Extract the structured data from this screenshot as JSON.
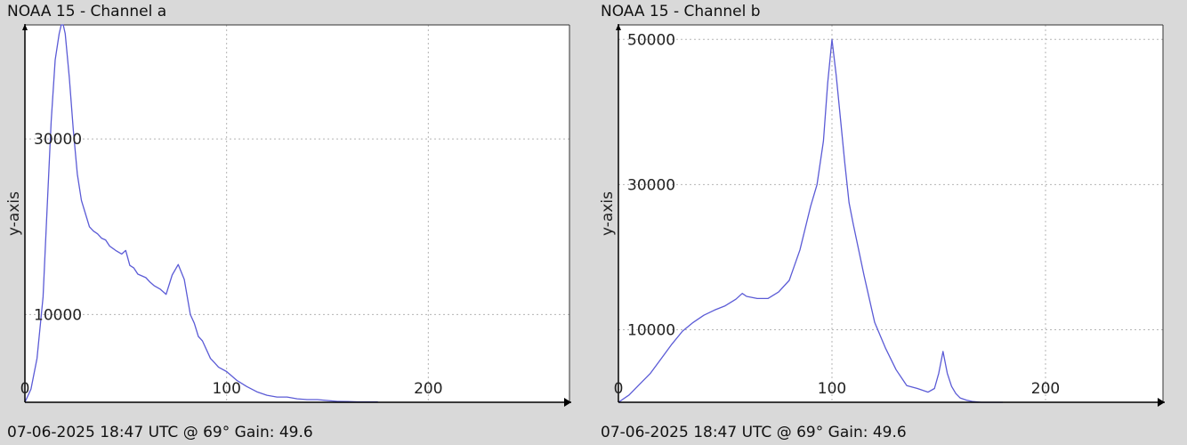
{
  "chart_data": [
    {
      "type": "line",
      "title": "NOAA 15 - Channel a",
      "footer": "07-06-2025 18:47 UTC @ 69° Gain: 49.6",
      "xlabel": "",
      "ylabel": "y-axis",
      "xlim": [
        0,
        270
      ],
      "ylim": [
        0,
        43000
      ],
      "xticks": [
        0,
        100,
        200
      ],
      "yticks": [
        10000,
        30000
      ],
      "grid": true,
      "series": [
        {
          "color": "#5b5bd6",
          "x": [
            0,
            3,
            6,
            9,
            11,
            13,
            15,
            17,
            18,
            19,
            20,
            22,
            24,
            26,
            28,
            30,
            32,
            34,
            36,
            38,
            40,
            42,
            45,
            48,
            50,
            52,
            54,
            56,
            58,
            60,
            62,
            64,
            67,
            70,
            73,
            76,
            79,
            82,
            84,
            86,
            88,
            90,
            92,
            94,
            96,
            100,
            105,
            110,
            115,
            120,
            125,
            130,
            135,
            140,
            145,
            150,
            155,
            160,
            165,
            170,
            175
          ],
          "y": [
            0,
            1500,
            5000,
            12000,
            22000,
            32000,
            39000,
            42000,
            43000,
            43000,
            42000,
            37000,
            31000,
            26000,
            23000,
            21500,
            20000,
            19500,
            19200,
            18700,
            18500,
            17800,
            17300,
            16900,
            17300,
            15600,
            15300,
            14600,
            14400,
            14200,
            13700,
            13300,
            12900,
            12300,
            14500,
            15700,
            14000,
            10000,
            9000,
            7500,
            7000,
            6000,
            5000,
            4500,
            4000,
            3500,
            2500,
            1800,
            1200,
            800,
            600,
            600,
            400,
            300,
            300,
            200,
            100,
            80,
            50,
            50,
            50
          ]
        }
      ]
    },
    {
      "type": "line",
      "title": "NOAA 15 - Channel b",
      "footer": "07-06-2025 18:47 UTC @ 69° Gain: 49.6",
      "xlabel": "",
      "ylabel": "y-axis",
      "xlim": [
        0,
        255
      ],
      "ylim": [
        0,
        52000
      ],
      "xticks": [
        0,
        100,
        200
      ],
      "yticks": [
        10000,
        30000,
        50000
      ],
      "grid": true,
      "series": [
        {
          "color": "#5b5bd6",
          "x": [
            0,
            5,
            10,
            15,
            20,
            25,
            30,
            35,
            40,
            45,
            50,
            55,
            58,
            60,
            65,
            70,
            75,
            80,
            85,
            90,
            93,
            96,
            98,
            100,
            102,
            104,
            106,
            108,
            110,
            115,
            120,
            125,
            130,
            135,
            140,
            145,
            148,
            150,
            152,
            154,
            156,
            158,
            160,
            163,
            166,
            170,
            175,
            180
          ],
          "y": [
            0,
            1000,
            2500,
            4000,
            6000,
            8000,
            9800,
            11000,
            12000,
            12700,
            13300,
            14200,
            15000,
            14600,
            14300,
            14300,
            15200,
            16800,
            21000,
            27000,
            30000,
            36000,
            44000,
            50000,
            45000,
            39000,
            33000,
            27500,
            24500,
            17500,
            11000,
            7500,
            4500,
            2300,
            1900,
            1400,
            1900,
            4000,
            7000,
            4000,
            2200,
            1200,
            600,
            300,
            100,
            0,
            0,
            0
          ]
        }
      ]
    }
  ]
}
